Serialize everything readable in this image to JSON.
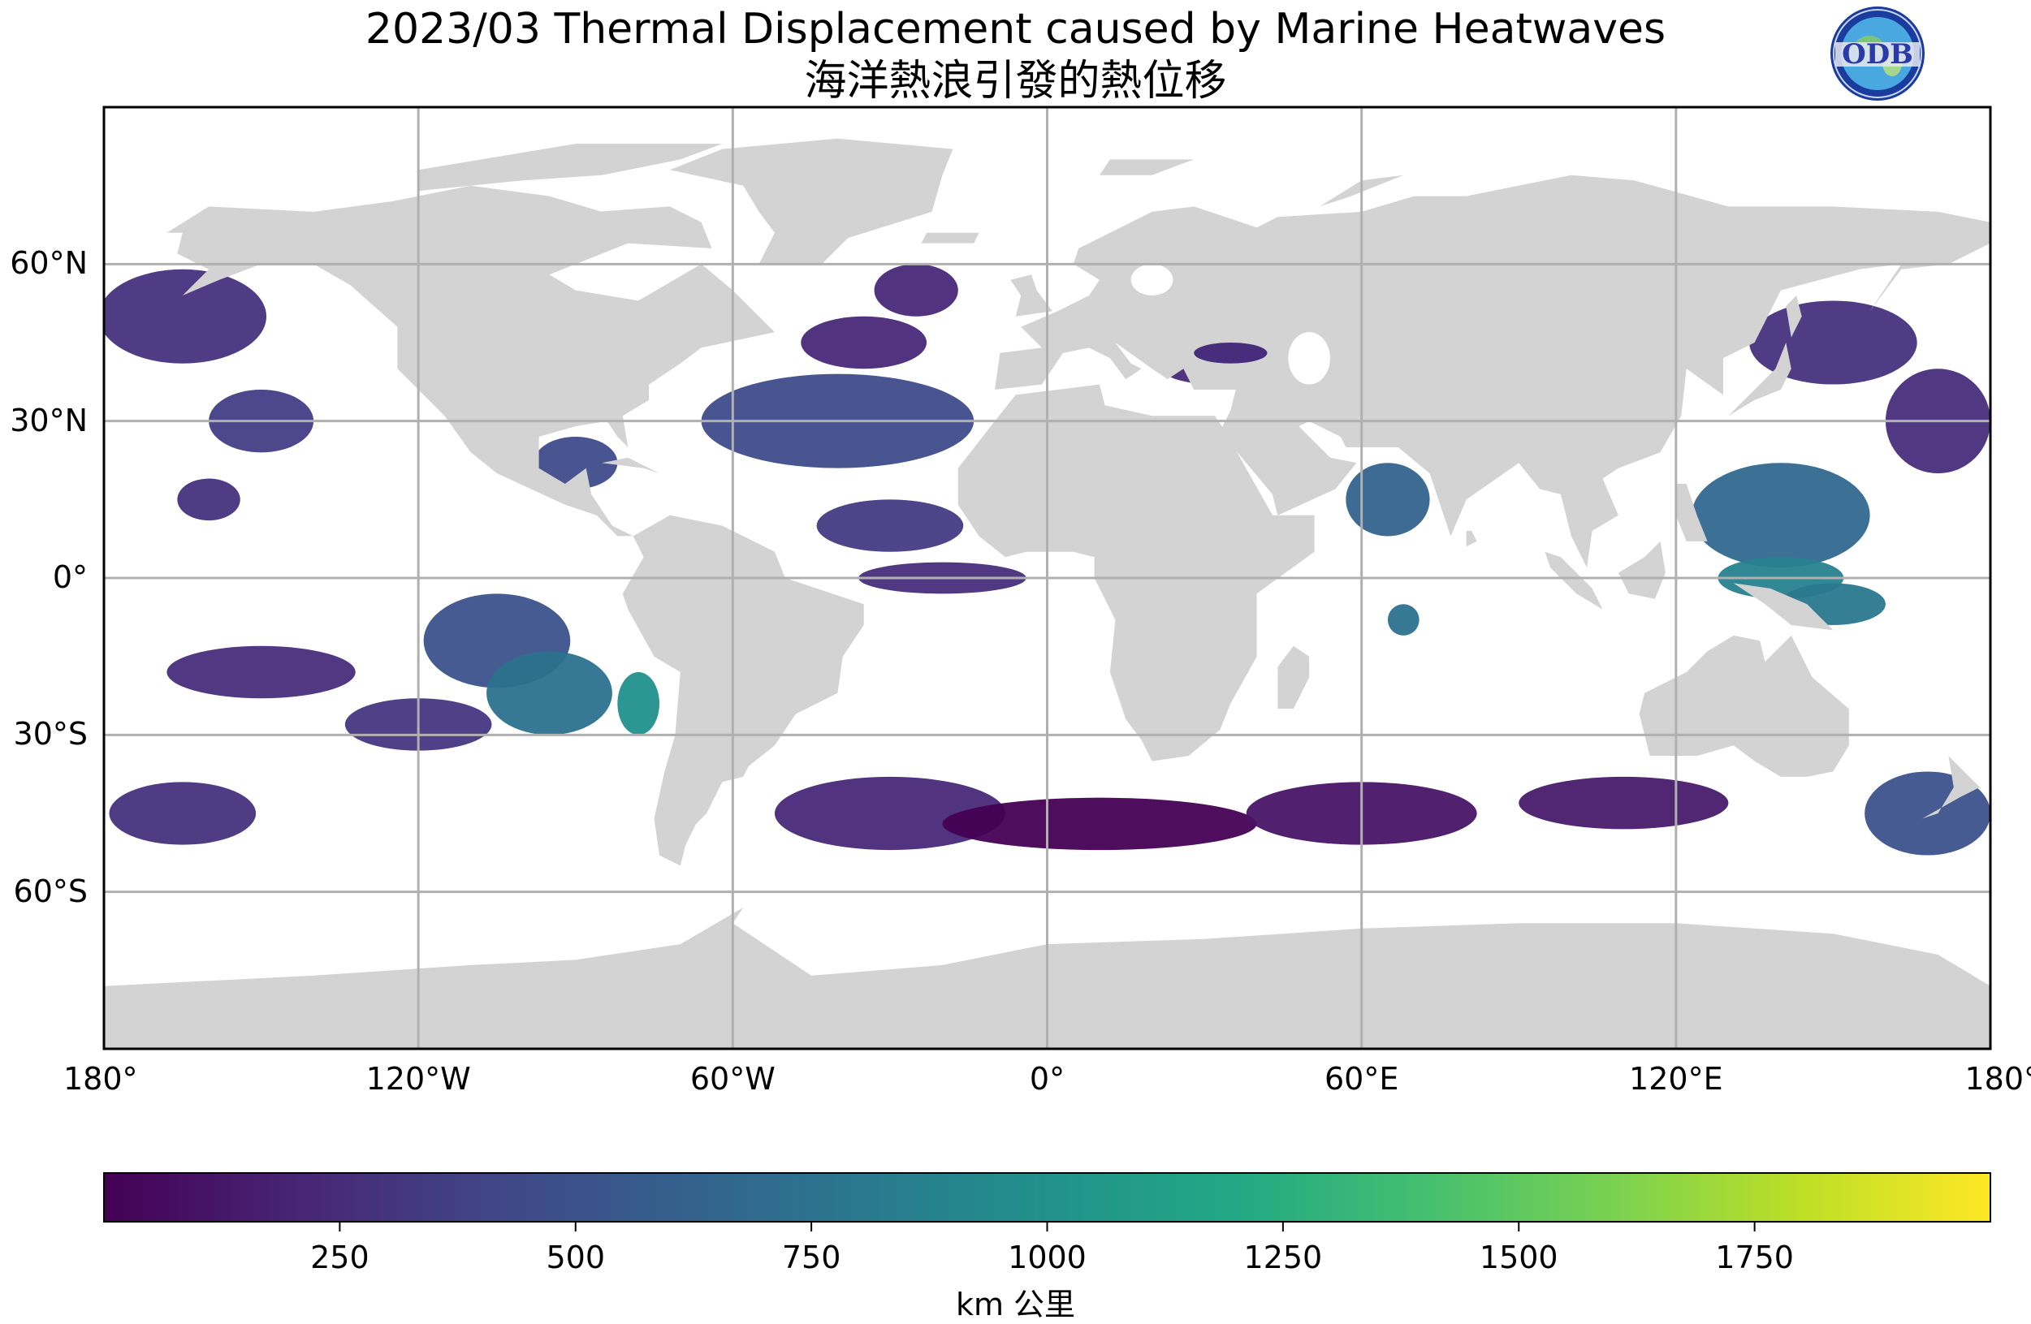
{
  "title": "2023/03 Thermal Displacement caused by Marine Heatwaves",
  "subtitle": "海洋熱浪引發的熱位移",
  "logo_text": "ODB",
  "map": {
    "land_color": "#d3d3d3",
    "ocean_color": "#ffffff",
    "grid_color": "#b0b0b0",
    "x_tick_labels": [
      "180°",
      "120°W",
      "60°W",
      "0°",
      "60°E",
      "120°E",
      "180°"
    ],
    "y_tick_labels": [
      "60°N",
      "30°N",
      "0°",
      "30°S",
      "60°S"
    ]
  },
  "chart_data": {
    "type": "heatmap",
    "title": "2023/03 Thermal Displacement caused by Marine Heatwaves",
    "subtitle": "海洋熱浪引發的熱位移",
    "colormap": "viridis",
    "colorbar_range": [
      0,
      2000
    ],
    "colorbar_ticks": [
      250,
      500,
      750,
      1000,
      1250,
      1500,
      1750
    ],
    "colorbar_label": "km 公里",
    "x_range": [
      -180,
      180
    ],
    "y_range": [
      -90,
      90
    ],
    "grid": true
  }
}
